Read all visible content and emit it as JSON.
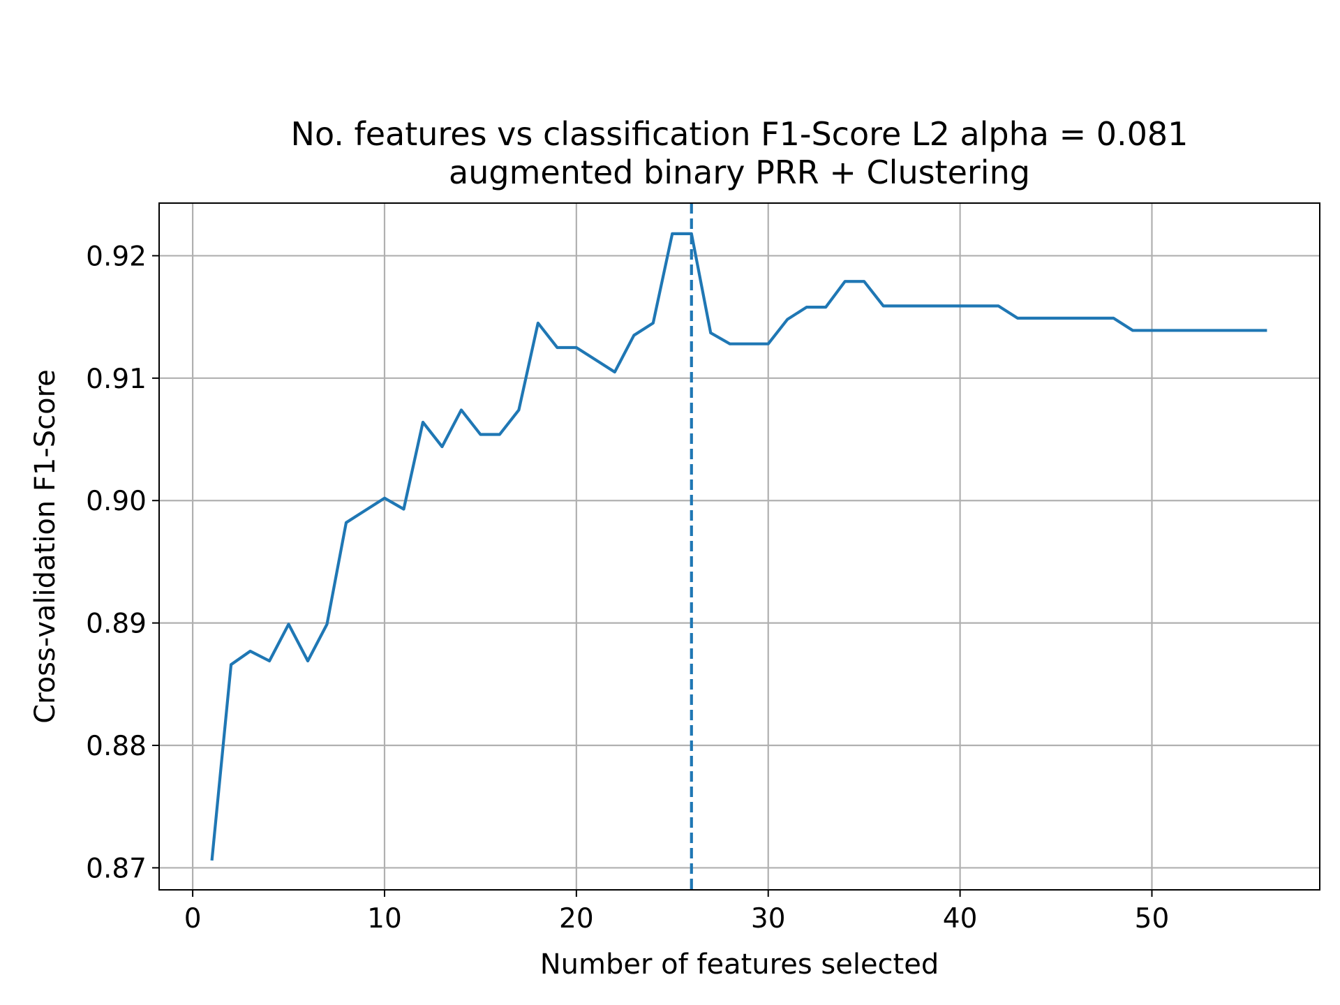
{
  "chart_data": {
    "type": "line",
    "title_line1": "No. features vs classification F1-Score L2 alpha = 0.081",
    "title_line2": "augmented binary PRR + Clustering",
    "xlabel": "Number of features selected",
    "ylabel": "Cross-validation F1-Score",
    "xlim": [
      -1.75,
      58.75
    ],
    "ylim": [
      0.8682,
      0.9243
    ],
    "xticks": [
      0,
      10,
      20,
      30,
      40,
      50
    ],
    "xtick_labels": [
      "0",
      "10",
      "20",
      "30",
      "40",
      "50"
    ],
    "yticks": [
      0.87,
      0.88,
      0.89,
      0.9,
      0.91,
      0.92
    ],
    "ytick_labels": [
      "0.87",
      "0.88",
      "0.89",
      "0.90",
      "0.91",
      "0.92"
    ],
    "grid": true,
    "line_color": "#1f77b4",
    "series": [
      {
        "x": [
          1,
          2,
          3,
          4,
          5,
          6,
          7,
          8,
          9,
          10,
          11,
          12,
          13,
          14,
          15,
          16,
          17,
          18,
          19,
          20,
          21,
          22,
          23,
          24,
          25,
          26,
          27,
          28,
          29,
          30,
          31,
          32,
          33,
          34,
          35,
          36,
          37,
          38,
          39,
          40,
          41,
          42,
          43,
          44,
          45,
          46,
          47,
          48,
          49,
          50,
          51,
          52,
          53,
          54,
          55,
          56
        ],
        "y": [
          0.8706,
          0.8866,
          0.8877,
          0.8869,
          0.8899,
          0.8869,
          0.8899,
          0.8982,
          0.8992,
          0.9002,
          0.8993,
          0.9064,
          0.9044,
          0.9074,
          0.9054,
          0.9054,
          0.9074,
          0.9145,
          0.9125,
          0.9125,
          0.9115,
          0.9105,
          0.9135,
          0.9145,
          0.9218,
          0.9218,
          0.9137,
          0.9128,
          0.9128,
          0.9128,
          0.9148,
          0.9158,
          0.9158,
          0.9179,
          0.9179,
          0.9159,
          0.9159,
          0.9159,
          0.9159,
          0.9159,
          0.9159,
          0.9159,
          0.9149,
          0.9149,
          0.9149,
          0.9149,
          0.9149,
          0.9149,
          0.9139,
          0.9139,
          0.9139,
          0.9139,
          0.9139,
          0.9139,
          0.9139,
          0.9139
        ]
      }
    ],
    "vline": {
      "x": 26,
      "style": "dashed"
    }
  }
}
